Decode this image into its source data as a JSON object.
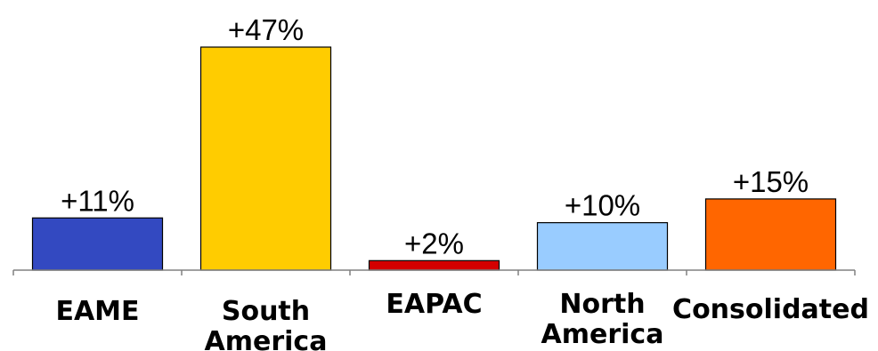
{
  "chart_data": {
    "type": "bar",
    "categories": [
      {
        "lines": [
          "EAME"
        ]
      },
      {
        "lines": [
          "South",
          "America"
        ]
      },
      {
        "lines": [
          "EAPAC"
        ]
      },
      {
        "lines": [
          "North",
          "America"
        ]
      },
      {
        "lines": [
          "Consolidated"
        ]
      }
    ],
    "values": [
      11,
      47,
      2,
      10,
      15
    ],
    "data_labels": [
      "+11%",
      "+47%",
      "+2%",
      "+10%",
      "+15%"
    ],
    "colors": [
      "#3349c1",
      "#ffcc00",
      "#d40000",
      "#99ccff",
      "#ff6600"
    ],
    "title": "",
    "xlabel": "",
    "ylabel": "",
    "ylim": [
      0,
      47
    ],
    "grid": false,
    "legend": "none"
  }
}
